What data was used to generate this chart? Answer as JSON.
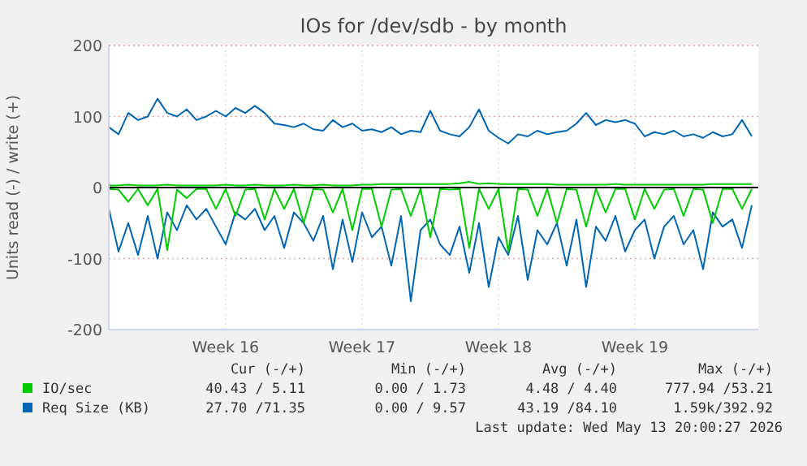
{
  "chart_data": {
    "type": "line",
    "title": "IOs for /dev/sdb - by month",
    "ylabel": "Units read (-) / write (+)",
    "categories": [
      null,
      null,
      null,
      null,
      null,
      null,
      null,
      null,
      null,
      null,
      null,
      null,
      "Week 16",
      null,
      null,
      null,
      null,
      null,
      null,
      null,
      null,
      null,
      null,
      null,
      null,
      null,
      "Week 17",
      null,
      null,
      null,
      null,
      null,
      null,
      null,
      null,
      null,
      null,
      null,
      null,
      null,
      "Week 18",
      null,
      null,
      null,
      null,
      null,
      null,
      null,
      null,
      null,
      null,
      null,
      null,
      null,
      "Week 19",
      null,
      null,
      null,
      null,
      null,
      null,
      null,
      null,
      null,
      null,
      null,
      null
    ],
    "ylim": [
      -200,
      200
    ],
    "yticks": [
      -200,
      -100,
      0,
      100,
      200
    ],
    "grid": true,
    "legend": "bottom",
    "series": [
      {
        "name": "IO/sec",
        "color": "#00cc00",
        "values": [
          3,
          3,
          4,
          3,
          3,
          3,
          4,
          3,
          3,
          3,
          3,
          3,
          4,
          3,
          3,
          4,
          3,
          3,
          3,
          4,
          3,
          3,
          4,
          3,
          3,
          3,
          4,
          4,
          5,
          5,
          5,
          5,
          5,
          5,
          5,
          5,
          6,
          8,
          5,
          6,
          5,
          5,
          5,
          5,
          5,
          5,
          4,
          4,
          4,
          4,
          4,
          4,
          5,
          4,
          4,
          4,
          4,
          4,
          4,
          4,
          4,
          4,
          5,
          5,
          5,
          5,
          5
        ]
      },
      {
        "color": "#00cc00",
        "values": [
          -2,
          -3,
          -20,
          -2,
          -25,
          -2,
          -88,
          -3,
          -15,
          -2,
          -2,
          -30,
          -2,
          -40,
          -3,
          -2,
          -45,
          -2,
          -30,
          -2,
          -50,
          -2,
          -3,
          -35,
          -2,
          -60,
          -2,
          -2,
          -55,
          -3,
          -2,
          -40,
          -2,
          -70,
          -2,
          -3,
          -2,
          -85,
          -2,
          -30,
          -2,
          -90,
          -2,
          -3,
          -40,
          -2,
          -50,
          -2,
          -3,
          -55,
          -2,
          -35,
          -2,
          -2,
          -45,
          -2,
          -30,
          -3,
          -2,
          -40,
          -2,
          -3,
          -50,
          -2,
          -2,
          -30,
          -2
        ]
      },
      {
        "name": "Req Size (KB)",
        "color": "#0066b3",
        "values": [
          85,
          75,
          105,
          95,
          100,
          125,
          105,
          100,
          110,
          95,
          100,
          108,
          100,
          112,
          105,
          115,
          105,
          90,
          88,
          85,
          90,
          82,
          80,
          95,
          85,
          90,
          80,
          82,
          78,
          85,
          75,
          80,
          78,
          108,
          80,
          75,
          72,
          85,
          110,
          80,
          70,
          62,
          75,
          72,
          80,
          75,
          78,
          80,
          90,
          105,
          88,
          95,
          92,
          95,
          90,
          72,
          78,
          75,
          80,
          72,
          75,
          70,
          78,
          72,
          75,
          95,
          72
        ]
      },
      {
        "color": "#0066b3",
        "values": [
          -30,
          -90,
          -50,
          -95,
          -40,
          -100,
          -35,
          -60,
          -25,
          -45,
          -30,
          -55,
          -80,
          -35,
          -45,
          -30,
          -60,
          -40,
          -85,
          -35,
          -50,
          -75,
          -40,
          -115,
          -45,
          -105,
          -35,
          -70,
          -55,
          -110,
          -40,
          -160,
          -60,
          -45,
          -80,
          -95,
          -55,
          -120,
          -50,
          -140,
          -70,
          -95,
          -40,
          -130,
          -60,
          -80,
          -50,
          -110,
          -45,
          -140,
          -55,
          -75,
          -40,
          -90,
          -60,
          -45,
          -100,
          -55,
          -40,
          -80,
          -60,
          -115,
          -35,
          -55,
          -45,
          -85,
          -25
        ]
      }
    ],
    "ref_lines": [
      {
        "axis": "y",
        "value": 0,
        "color": "#000000"
      }
    ],
    "annotations": [
      "Cur (-/+)",
      "Min (-/+)",
      "Avg (-/+)",
      "Max (-/+)",
      "40.43 / 5.11",
      "0.00 / 1.73",
      "4.48 / 4.40",
      "777.94 /53.21",
      "27.70 /71.35",
      "0.00 / 9.57",
      "43.19 /84.10",
      "1.59k/392.92",
      "Last update: Wed May 13 20:00:27 2026"
    ]
  }
}
